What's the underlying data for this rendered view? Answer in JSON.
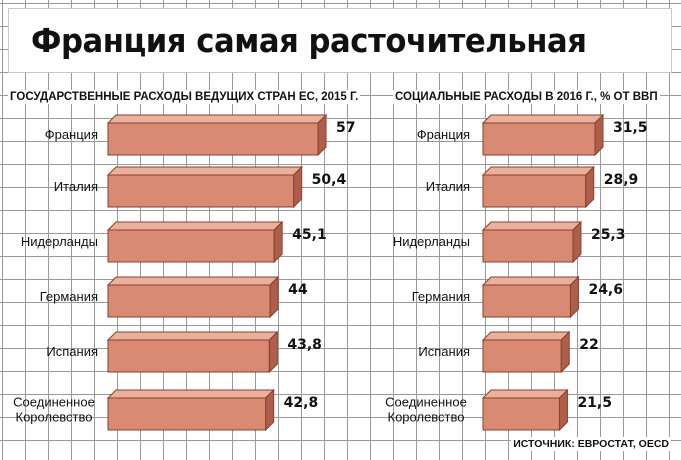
{
  "title": "Франция самая расточительная",
  "source": "ИСТОЧНИК: ЕВРОСТАТ, OECD",
  "colors": {
    "bar_face": "#d98a72",
    "bar_top": "#e9b09c",
    "bar_side": "#ad5f4b",
    "bar_edge": "#8a3f30"
  },
  "chart_data": [
    {
      "type": "bar",
      "orientation": "horizontal",
      "title": "ГОСУДАРСТВЕННЫЕ РАСХОДЫ ВЕДУЩИХ СТРАН ЕС, 2015 Г.",
      "categories": [
        "Франция",
        "Италия",
        "Нидерланды",
        "Германия",
        "Испания",
        "Соединенное Королевство"
      ],
      "values": [
        57,
        50.4,
        45.1,
        44,
        43.8,
        42.8
      ],
      "value_labels": [
        "57",
        "50,4",
        "45,1",
        "44",
        "43,8",
        "42,8"
      ],
      "grid": true,
      "legend": "none"
    },
    {
      "type": "bar",
      "orientation": "horizontal",
      "title": "СОЦИАЛЬНЫЕ РАСХОДЫ В 2016 Г., % ОТ ВВП",
      "categories": [
        "Франция",
        "Италия",
        "Нидерланды",
        "Германия",
        "Испания",
        "Соединенное Королевство"
      ],
      "values": [
        31.5,
        28.9,
        25.3,
        24.6,
        22,
        21.5
      ],
      "value_labels": [
        "31,5",
        "28,9",
        "25,3",
        "24,6",
        "22",
        "21,5"
      ],
      "grid": true,
      "legend": "none"
    }
  ]
}
